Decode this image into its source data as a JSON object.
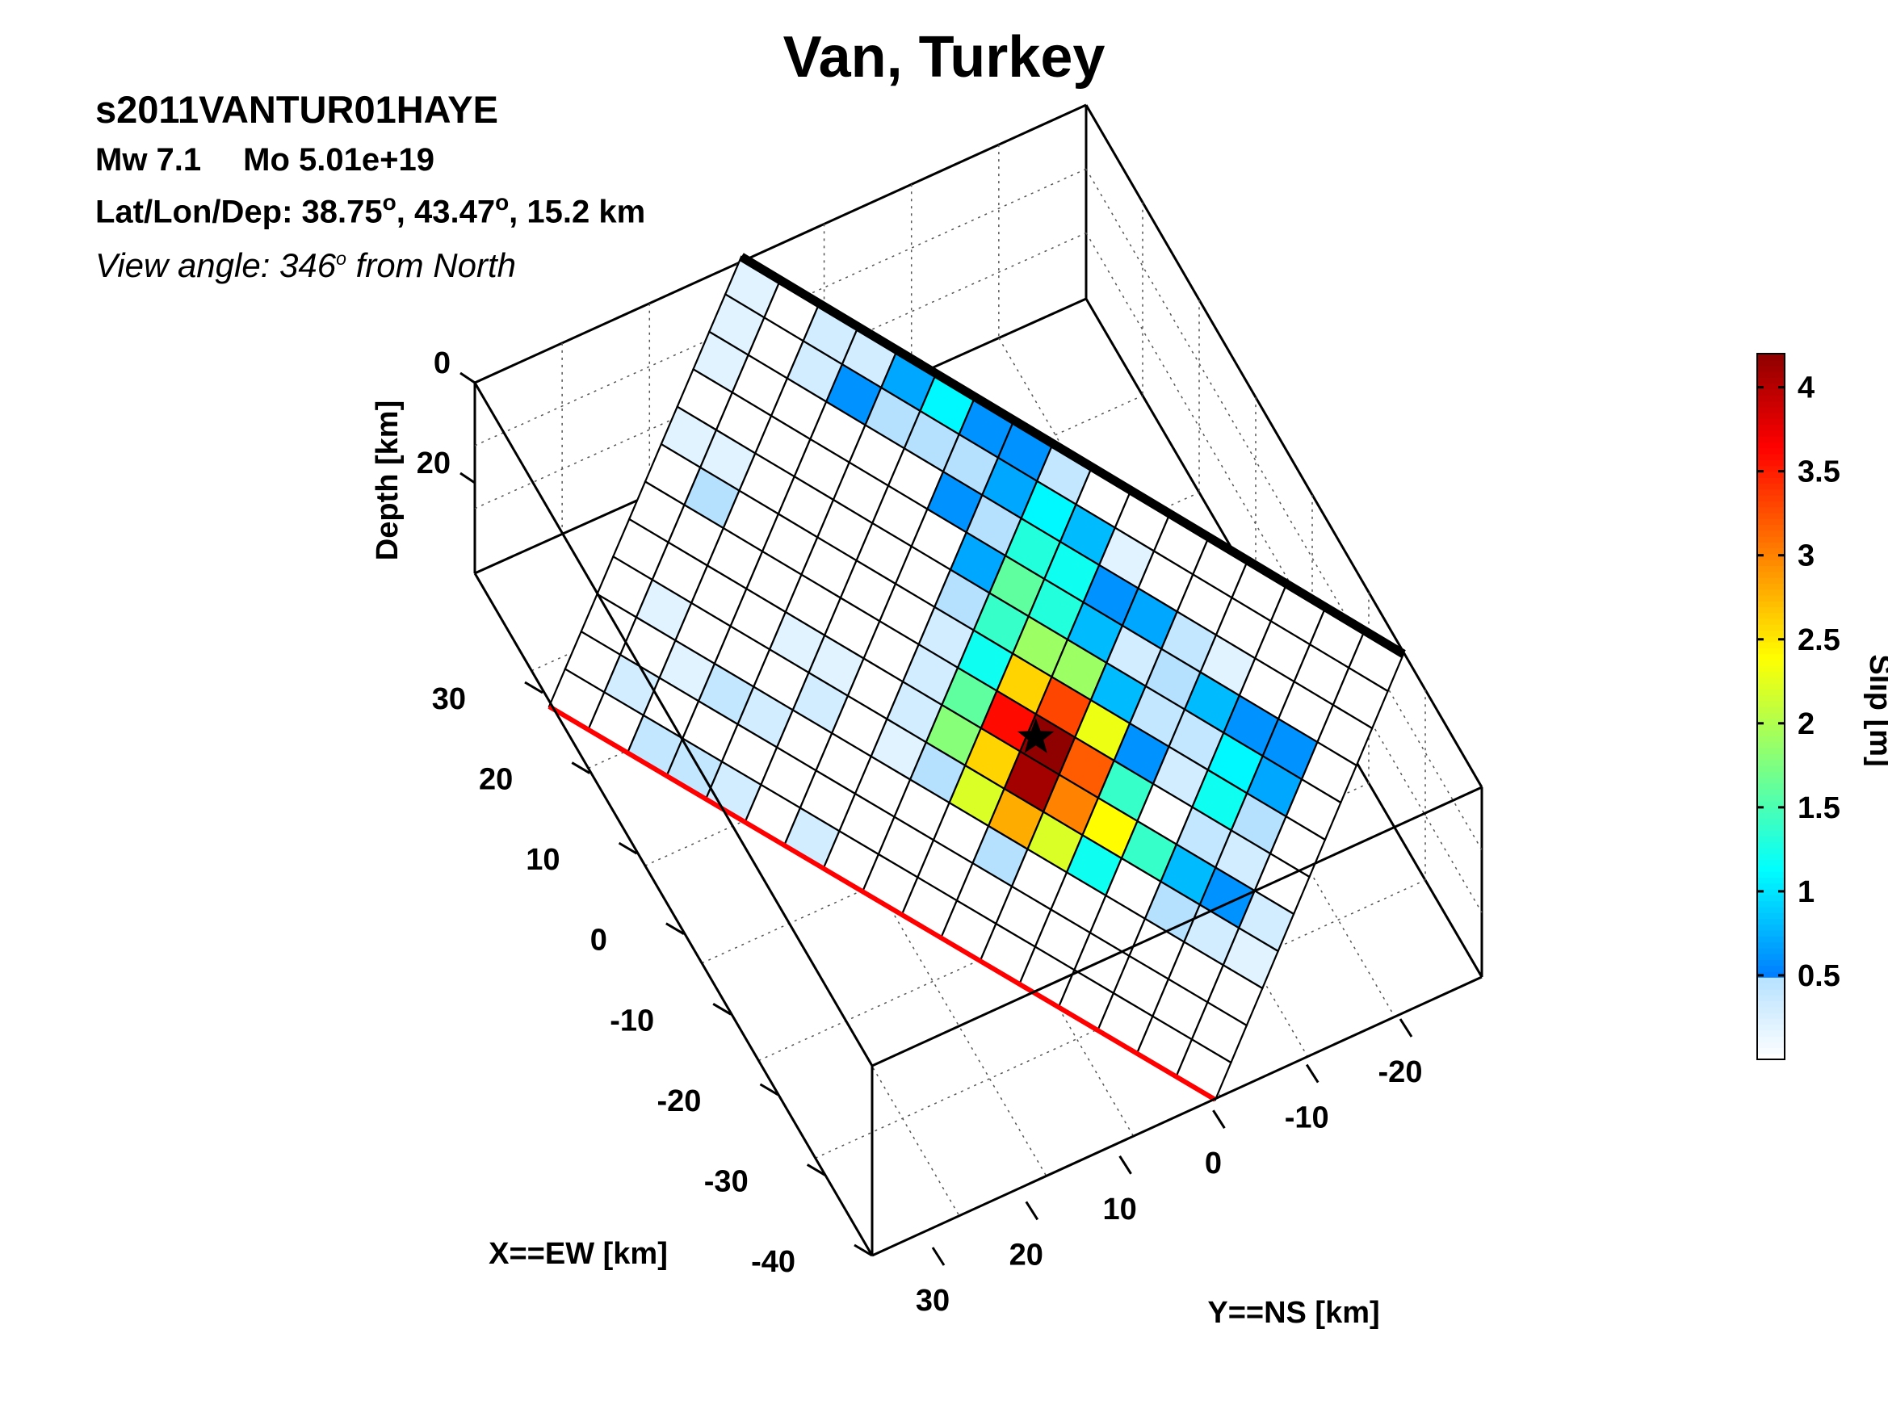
{
  "header": {
    "title": "Van, Turkey",
    "event_id": "s2011VANTUR01HAYE",
    "mw": "Mw 7.1",
    "mo": "Mo 5.01e+19",
    "loc_prefix": "Lat/Lon/Dep: 38.75",
    "loc_lon": ", 43.47",
    "loc_dep": ", 15.2 km",
    "view_prefix": "View angle: 346",
    "view_suffix": " from North",
    "deg_symbol": "o"
  },
  "chart_data": {
    "type": "heatmap",
    "title": "Van, Turkey",
    "xlabel": "X==EW [km]",
    "ylabel": "Y==NS [km]",
    "zlabel": "Depth [km]",
    "x_ticks": [
      "30",
      "20",
      "10",
      "0",
      "-10",
      "-20",
      "-30",
      "-40"
    ],
    "y_ticks": [
      "30",
      "20",
      "10",
      "0",
      "-10",
      "-20"
    ],
    "z_ticks": [
      "0",
      "20"
    ],
    "grid": true,
    "colorbar": {
      "label": "Slip [m]",
      "range": [
        0,
        4.2
      ],
      "ticks": [
        "0.5",
        "1",
        "1.5",
        "2",
        "2.5",
        "3",
        "3.5",
        "4"
      ],
      "colormap": "jet"
    },
    "fault_top_edge_color": "#000000",
    "fault_bottom_edge_color": "#ff0000",
    "rows": 12,
    "cols": 17,
    "slip_m": [
      [
        0.2,
        0.0,
        0.3,
        0.3,
        0.7,
        1.1,
        0.6,
        0.6,
        0.4,
        0.0,
        0.0,
        0.0,
        0.0,
        0.0,
        0.0,
        0.0,
        0.0
      ],
      [
        0.2,
        0.0,
        0.3,
        0.6,
        0.5,
        0.5,
        0.5,
        0.7,
        1.1,
        0.8,
        0.2,
        0.0,
        0.0,
        0.0,
        0.0,
        0.0,
        0.0
      ],
      [
        0.2,
        0.0,
        0.0,
        0.0,
        0.0,
        0.0,
        0.6,
        0.5,
        1.3,
        1.2,
        0.6,
        0.7,
        0.4,
        0.2,
        0.0,
        0.0,
        0.0
      ],
      [
        0.0,
        0.0,
        0.0,
        0.0,
        0.0,
        0.0,
        0.0,
        0.7,
        1.6,
        1.3,
        0.8,
        0.3,
        0.5,
        0.8,
        0.6,
        0.6,
        0.0
      ],
      [
        0.2,
        0.2,
        0.0,
        0.0,
        0.0,
        0.0,
        0.0,
        0.5,
        1.4,
        1.9,
        1.9,
        0.8,
        0.4,
        0.4,
        1.1,
        0.7,
        0.0
      ],
      [
        0.0,
        0.5,
        0.0,
        0.0,
        0.0,
        0.0,
        0.0,
        0.3,
        1.2,
        2.6,
        3.3,
        2.3,
        0.6,
        0.3,
        1.2,
        0.5,
        0.0
      ],
      [
        0.0,
        0.0,
        0.0,
        0.0,
        0.0,
        0.0,
        0.0,
        0.3,
        1.6,
        3.6,
        4.2,
        3.2,
        1.4,
        0.0,
        0.4,
        0.3,
        0.0
      ],
      [
        0.0,
        0.0,
        0.0,
        0.0,
        0.2,
        0.2,
        0.0,
        0.3,
        1.8,
        2.6,
        4.1,
        3.0,
        2.4,
        1.4,
        0.8,
        0.6,
        0.3
      ],
      [
        0.0,
        0.2,
        0.0,
        0.0,
        0.0,
        0.3,
        0.0,
        0.2,
        0.5,
        2.2,
        2.8,
        2.2,
        1.2,
        0.0,
        0.5,
        0.3,
        0.2
      ],
      [
        0.0,
        0.0,
        0.2,
        0.4,
        0.3,
        0.0,
        0.0,
        0.0,
        0.0,
        0.0,
        0.5,
        0.0,
        0.0,
        0.0,
        0.0,
        0.0,
        0.0
      ],
      [
        0.0,
        0.3,
        0.0,
        0.0,
        0.0,
        0.0,
        0.0,
        0.0,
        0.0,
        0.0,
        0.0,
        0.0,
        0.0,
        0.0,
        0.0,
        0.0,
        0.0
      ],
      [
        0.0,
        0.0,
        0.4,
        0.4,
        0.3,
        0.0,
        0.3,
        0.0,
        0.0,
        0.0,
        0.0,
        0.0,
        0.0,
        0.0,
        0.0,
        0.0,
        0.0
      ]
    ]
  }
}
